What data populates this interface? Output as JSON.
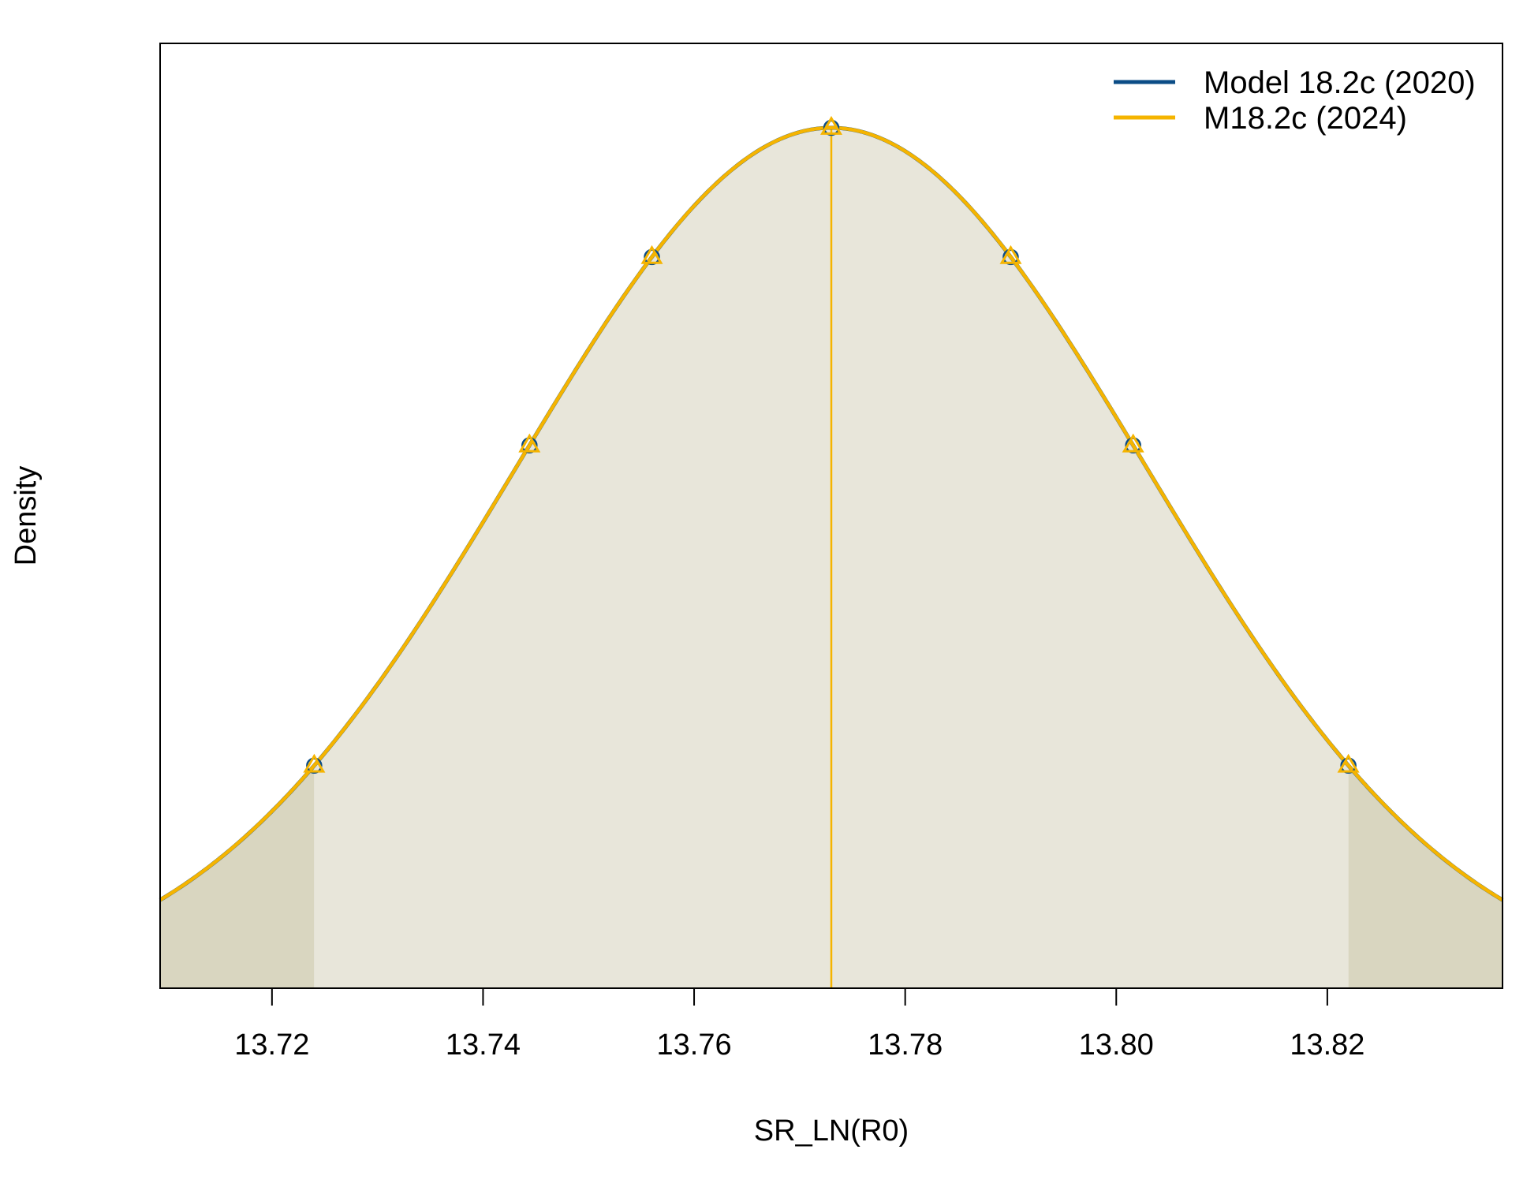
{
  "chart_data": {
    "type": "line",
    "title": "",
    "xlabel": "SR_LN(R0)",
    "ylabel": "Density",
    "xlim": [
      13.7094,
      13.8366
    ],
    "xticks": [
      "13.72",
      "13.74",
      "13.76",
      "13.78",
      "13.80",
      "13.82"
    ],
    "xtick_values": [
      13.72,
      13.74,
      13.76,
      13.78,
      13.8,
      13.82
    ],
    "y_tick_labels_shown": false,
    "grid": false,
    "legend": {
      "placement": "top-right"
    },
    "distribution": {
      "kind": "normal",
      "mean": 13.773,
      "sd": 0.0298,
      "ci_lower": 13.724,
      "ci_upper": 13.822
    },
    "series": [
      {
        "name": "Model 18.2c (2020)",
        "color": "#0b4c86",
        "marker": "circle",
        "marker_x": [
          13.724,
          13.7444,
          13.756,
          13.773,
          13.79,
          13.8016,
          13.822
        ]
      },
      {
        "name": "M18.2c (2024)",
        "color": "#f5b400",
        "marker": "triangle",
        "marker_x": [
          13.724,
          13.7444,
          13.756,
          13.773,
          13.79,
          13.8016,
          13.822
        ]
      }
    ],
    "colors": {
      "fill_main": "#e8e6da",
      "fill_tail": "#d9d6c0",
      "median_line": "#f5b400"
    }
  }
}
